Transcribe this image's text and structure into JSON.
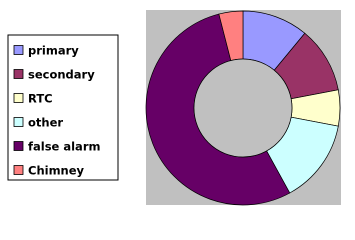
{
  "chart_data": {
    "type": "donut",
    "categories": [
      "primary",
      "secondary",
      "RTC",
      "other",
      "false alarm",
      "Chimney"
    ],
    "values": [
      11,
      11,
      6,
      14,
      54,
      4
    ],
    "colors": [
      "#9999ff",
      "#993366",
      "#ffffcc",
      "#ccffff",
      "#660066",
      "#ff8080"
    ],
    "legend": "left"
  }
}
